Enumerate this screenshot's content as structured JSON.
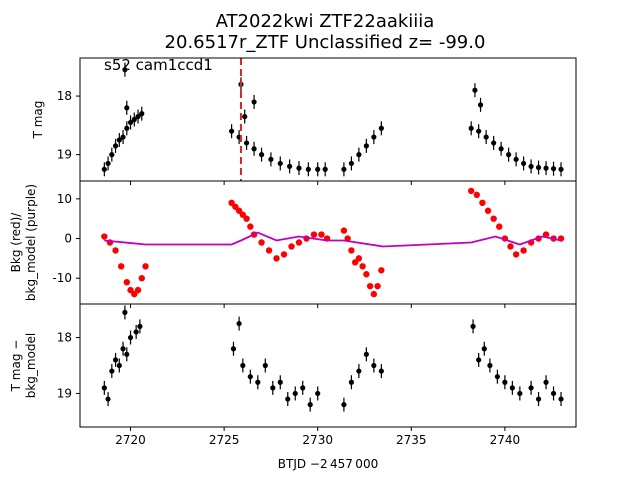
{
  "title": {
    "line1": "AT2022kwi  ZTF22aakiiia",
    "line2": "20.6517r_ZTF Unclassified z= -99.0"
  },
  "annotation": "s52 cam1ccd1",
  "xlabel": "BTJD −2 457 000",
  "colors": {
    "tmag_points": "#000000",
    "bkg_points": "#ff0000",
    "bkg_model_line": "#bf00bf",
    "event_marker": "#d62728"
  },
  "chart_data": [
    {
      "type": "scatter",
      "ylabel": "T mag",
      "y_inverted": true,
      "xlim": [
        2717.3,
        2743.8
      ],
      "ylim": [
        19.45,
        17.35
      ],
      "yticks": [
        18,
        19
      ],
      "grid": false,
      "event_marker_x": 2725.9,
      "series": [
        {
          "values": [
            [
              2718.6,
              19.25
            ],
            [
              2718.8,
              19.15
            ],
            [
              2719.0,
              19.0
            ],
            [
              2719.2,
              18.85
            ],
            [
              2719.4,
              18.75
            ],
            [
              2719.6,
              18.7
            ],
            [
              2719.8,
              18.55
            ],
            [
              2719.8,
              18.2
            ],
            [
              2720.0,
              18.45
            ],
            [
              2720.2,
              18.4
            ],
            [
              2720.4,
              18.35
            ],
            [
              2720.6,
              18.3
            ],
            [
              2719.7,
              17.55
            ],
            [
              2725.4,
              18.6
            ],
            [
              2725.8,
              18.7
            ],
            [
              2726.2,
              18.8
            ],
            [
              2726.6,
              18.9
            ],
            [
              2727.0,
              19.0
            ],
            [
              2727.5,
              19.08
            ],
            [
              2728.0,
              19.15
            ],
            [
              2728.5,
              19.2
            ],
            [
              2729.0,
              19.23
            ],
            [
              2729.5,
              19.25
            ],
            [
              2730.0,
              19.25
            ],
            [
              2730.4,
              19.25
            ],
            [
              2725.9,
              17.8
            ],
            [
              2726.6,
              18.1
            ],
            [
              2726.1,
              18.35
            ],
            [
              2731.4,
              19.25
            ],
            [
              2731.8,
              19.15
            ],
            [
              2732.2,
              19.0
            ],
            [
              2732.6,
              18.85
            ],
            [
              2733.0,
              18.7
            ],
            [
              2733.4,
              18.55
            ],
            [
              2738.2,
              18.55
            ],
            [
              2738.6,
              18.6
            ],
            [
              2739.0,
              18.7
            ],
            [
              2739.4,
              18.8
            ],
            [
              2739.8,
              18.9
            ],
            [
              2740.2,
              19.0
            ],
            [
              2740.6,
              19.08
            ],
            [
              2741.0,
              19.15
            ],
            [
              2741.4,
              19.2
            ],
            [
              2741.8,
              19.22
            ],
            [
              2742.2,
              19.23
            ],
            [
              2742.6,
              19.24
            ],
            [
              2743.0,
              19.25
            ],
            [
              2738.4,
              17.9
            ],
            [
              2738.7,
              18.15
            ]
          ]
        }
      ]
    },
    {
      "type": "scatter",
      "ylabel": "Bkg (red)/\nbkg_model (purple)",
      "xlim": [
        2717.3,
        2743.8
      ],
      "ylim": [
        -16.5,
        14.5
      ],
      "yticks": [
        10,
        0,
        -10
      ],
      "grid": false,
      "series": [
        {
          "name": "Bkg",
          "values": [
            [
              2718.6,
              0.5
            ],
            [
              2718.9,
              -1
            ],
            [
              2719.2,
              -3
            ],
            [
              2719.5,
              -7
            ],
            [
              2719.8,
              -11
            ],
            [
              2720.0,
              -13
            ],
            [
              2720.2,
              -14
            ],
            [
              2720.4,
              -13
            ],
            [
              2720.6,
              -10
            ],
            [
              2720.8,
              -7
            ],
            [
              2725.4,
              9
            ],
            [
              2725.6,
              8
            ],
            [
              2725.8,
              7
            ],
            [
              2726.0,
              6
            ],
            [
              2726.2,
              5
            ],
            [
              2726.4,
              3
            ],
            [
              2726.6,
              1
            ],
            [
              2727.0,
              -1
            ],
            [
              2727.4,
              -3
            ],
            [
              2727.8,
              -5
            ],
            [
              2728.2,
              -4
            ],
            [
              2728.6,
              -2
            ],
            [
              2729.0,
              -1
            ],
            [
              2729.4,
              0
            ],
            [
              2729.8,
              1
            ],
            [
              2730.2,
              1
            ],
            [
              2730.5,
              0
            ],
            [
              2731.4,
              2
            ],
            [
              2731.6,
              0
            ],
            [
              2731.8,
              -3
            ],
            [
              2732.0,
              -6
            ],
            [
              2732.2,
              -5
            ],
            [
              2732.4,
              -7
            ],
            [
              2732.6,
              -9
            ],
            [
              2732.8,
              -12
            ],
            [
              2733.0,
              -14
            ],
            [
              2733.2,
              -12
            ],
            [
              2733.4,
              -8
            ],
            [
              2738.2,
              12
            ],
            [
              2738.5,
              11
            ],
            [
              2738.8,
              9
            ],
            [
              2739.1,
              7
            ],
            [
              2739.4,
              5
            ],
            [
              2739.7,
              3
            ],
            [
              2740.0,
              0
            ],
            [
              2740.3,
              -2
            ],
            [
              2740.6,
              -4
            ],
            [
              2741.0,
              -3
            ],
            [
              2741.4,
              -1
            ],
            [
              2741.8,
              0
            ],
            [
              2742.2,
              1
            ],
            [
              2742.6,
              0
            ],
            [
              2743.0,
              0
            ]
          ]
        },
        {
          "name": "bkg_model",
          "values": [
            [
              2718.6,
              -0.5
            ],
            [
              2720.8,
              -1.5
            ],
            [
              2725.4,
              -1.5
            ],
            [
              2725.9,
              -0.5
            ],
            [
              2726.8,
              1.5
            ],
            [
              2727.8,
              -0.5
            ],
            [
              2729.0,
              0.5
            ],
            [
              2730.5,
              -0.5
            ],
            [
              2731.4,
              -0.5
            ],
            [
              2733.5,
              -2
            ],
            [
              2738.2,
              -1
            ],
            [
              2739.5,
              0.5
            ],
            [
              2740.8,
              -1.5
            ],
            [
              2742.0,
              0.5
            ],
            [
              2743.0,
              -0.5
            ]
          ]
        }
      ]
    },
    {
      "type": "scatter",
      "ylabel": "T mag −\nbkg_model",
      "y_inverted": true,
      "xlim": [
        2717.3,
        2743.8
      ],
      "ylim": [
        19.6,
        17.4
      ],
      "yticks": [
        18,
        19
      ],
      "grid": false,
      "series": [
        {
          "values": [
            [
              2718.6,
              18.9
            ],
            [
              2718.8,
              19.1
            ],
            [
              2719.0,
              18.6
            ],
            [
              2719.2,
              18.4
            ],
            [
              2719.4,
              18.5
            ],
            [
              2719.6,
              18.2
            ],
            [
              2719.8,
              18.3
            ],
            [
              2719.7,
              17.55
            ],
            [
              2720.0,
              18.0
            ],
            [
              2720.3,
              17.9
            ],
            [
              2720.5,
              17.8
            ],
            [
              2725.5,
              18.2
            ],
            [
              2725.8,
              17.75
            ],
            [
              2726.0,
              18.5
            ],
            [
              2726.4,
              18.7
            ],
            [
              2726.8,
              18.8
            ],
            [
              2727.2,
              18.5
            ],
            [
              2727.6,
              18.9
            ],
            [
              2728.0,
              18.8
            ],
            [
              2728.4,
              19.1
            ],
            [
              2728.8,
              19.0
            ],
            [
              2729.2,
              18.9
            ],
            [
              2729.6,
              19.2
            ],
            [
              2730.0,
              19.0
            ],
            [
              2731.4,
              19.2
            ],
            [
              2731.8,
              18.8
            ],
            [
              2732.2,
              18.6
            ],
            [
              2732.6,
              18.3
            ],
            [
              2733.0,
              18.5
            ],
            [
              2733.4,
              18.6
            ],
            [
              2738.3,
              17.8
            ],
            [
              2738.6,
              18.4
            ],
            [
              2738.9,
              18.2
            ],
            [
              2739.2,
              18.5
            ],
            [
              2739.6,
              18.7
            ],
            [
              2740.0,
              18.8
            ],
            [
              2740.4,
              18.9
            ],
            [
              2740.8,
              19.0
            ],
            [
              2741.4,
              18.9
            ],
            [
              2741.8,
              19.1
            ],
            [
              2742.2,
              18.8
            ],
            [
              2742.6,
              19.0
            ],
            [
              2743.0,
              19.1
            ]
          ]
        }
      ]
    }
  ],
  "xticks": [
    2720,
    2725,
    2730,
    2735,
    2740
  ]
}
